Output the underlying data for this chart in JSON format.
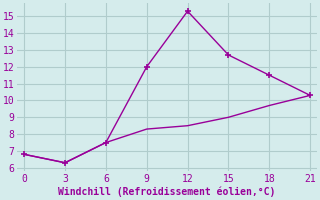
{
  "line1_x": [
    0,
    3,
    6,
    9,
    12,
    15,
    18,
    21
  ],
  "line1_y": [
    6.8,
    6.3,
    7.5,
    12.0,
    15.3,
    12.7,
    11.5,
    10.3
  ],
  "line2_x": [
    0,
    3,
    6,
    9,
    12,
    15,
    18,
    21
  ],
  "line2_y": [
    6.8,
    6.3,
    7.5,
    8.3,
    8.5,
    9.0,
    9.7,
    10.3
  ],
  "color": "#990099",
  "xlabel": "Windchill (Refroidissement éolien,°C)",
  "xlim": [
    -0.5,
    21.5
  ],
  "ylim": [
    5.8,
    15.8
  ],
  "yticks": [
    6,
    7,
    8,
    9,
    10,
    11,
    12,
    13,
    14,
    15
  ],
  "xticks": [
    0,
    3,
    6,
    9,
    12,
    15,
    18,
    21
  ],
  "bg_color": "#d5ecec",
  "grid_color": "#b0cccc",
  "marker": "+"
}
